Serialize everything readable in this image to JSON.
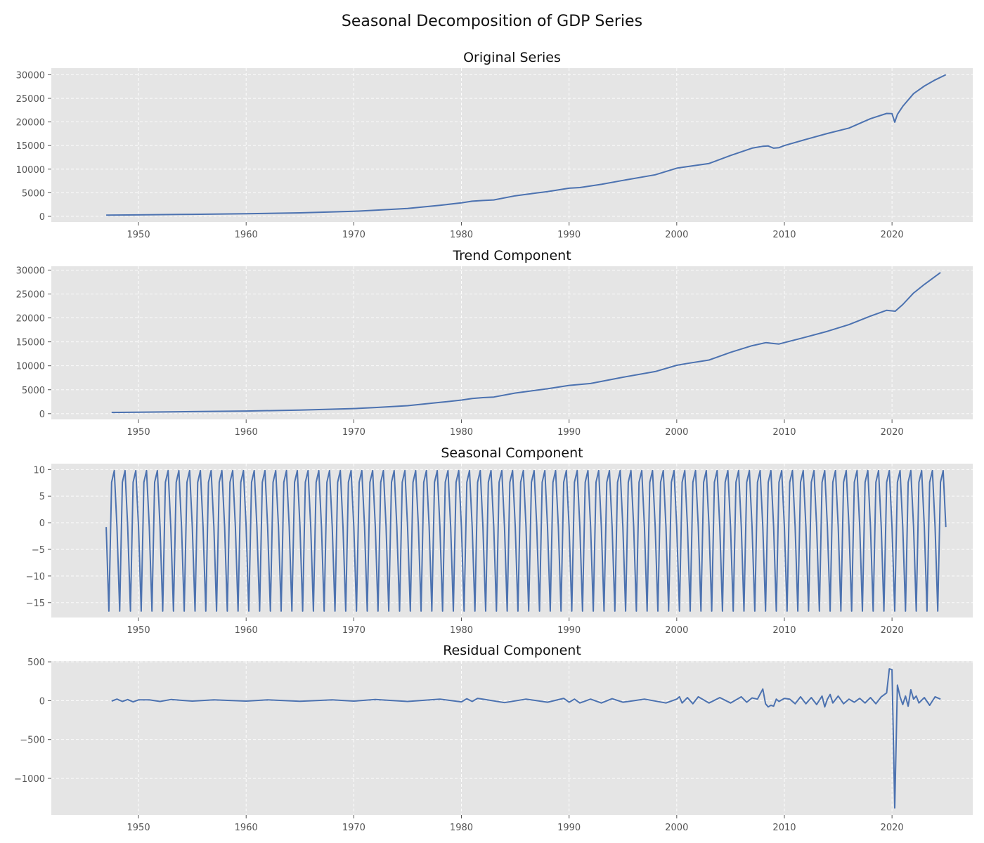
{
  "figure": {
    "title": "Seasonal Decomposition of GDP Series"
  },
  "style": {
    "plot_bg": "#e5e5e5",
    "grid": "#ffffff",
    "line": "#4c72b0",
    "tick_text": "#555555",
    "title_text": "#111111"
  },
  "chart_data": [
    {
      "type": "line",
      "title": "Original Series",
      "xlabel": "",
      "ylabel": "",
      "grid": true,
      "xlim": [
        1941.9,
        2027.5
      ],
      "ylim": [
        -1200,
        31400
      ],
      "xticks": [
        1950,
        1960,
        1970,
        1980,
        1990,
        2000,
        2010,
        2020
      ],
      "yticks": [
        0,
        5000,
        10000,
        15000,
        20000,
        25000,
        30000
      ],
      "series": [
        {
          "x": [
            1947.0,
            1950.0,
            1955.0,
            1960.0,
            1965.0,
            1970.0,
            1972.0,
            1975.0,
            1978.0,
            1980.0,
            1981.0,
            1982.0,
            1983.0,
            1985.0,
            1988.0,
            1990.0,
            1991.0,
            1993.0,
            1995.0,
            1998.0,
            2000.0,
            2001.0,
            2003.0,
            2005.0,
            2007.0,
            2008.0,
            2008.5,
            2009.0,
            2009.5,
            2010.0,
            2012.0,
            2014.0,
            2016.0,
            2018.0,
            2019.5,
            2020.0,
            2020.25,
            2020.5,
            2021.0,
            2022.0,
            2023.0,
            2024.0,
            2025.0
          ],
          "values": [
            250,
            300,
            430,
            540,
            740,
            1070,
            1280,
            1660,
            2350,
            2850,
            3210,
            3360,
            3480,
            4350,
            5250,
            5960,
            6100,
            6780,
            7610,
            8800,
            10200,
            10550,
            11200,
            12900,
            14450,
            14850,
            14900,
            14450,
            14550,
            15000,
            16300,
            17550,
            18700,
            20700,
            21800,
            21750,
            19950,
            21600,
            23300,
            26000,
            27600,
            28900,
            30000
          ]
        }
      ]
    },
    {
      "type": "line",
      "title": "Trend Component",
      "xlabel": "",
      "ylabel": "",
      "grid": true,
      "xlim": [
        1941.9,
        2027.5
      ],
      "ylim": [
        -1200,
        30800
      ],
      "xticks": [
        1950,
        1960,
        1970,
        1980,
        1990,
        2000,
        2010,
        2020
      ],
      "yticks": [
        0,
        5000,
        10000,
        15000,
        20000,
        25000,
        30000
      ],
      "series": [
        {
          "x": [
            1947.5,
            1950.0,
            1955.0,
            1960.0,
            1965.0,
            1970.0,
            1972.0,
            1975.0,
            1978.0,
            1980.0,
            1981.0,
            1982.0,
            1983.0,
            1985.0,
            1988.0,
            1990.0,
            1992.0,
            1995.0,
            1998.0,
            2000.0,
            2001.0,
            2003.0,
            2005.0,
            2007.0,
            2008.3,
            2009.0,
            2009.5,
            2010.0,
            2012.0,
            2014.0,
            2016.0,
            2018.0,
            2019.5,
            2020.3,
            2021.0,
            2022.0,
            2023.0,
            2024.5
          ],
          "values": [
            260,
            300,
            430,
            540,
            740,
            1060,
            1280,
            1660,
            2350,
            2830,
            3180,
            3350,
            3470,
            4300,
            5200,
            5900,
            6300,
            7600,
            8800,
            10100,
            10500,
            11200,
            12800,
            14200,
            14850,
            14650,
            14550,
            14850,
            16000,
            17200,
            18600,
            20400,
            21600,
            21400,
            22800,
            25200,
            27000,
            29500
          ]
        }
      ]
    },
    {
      "type": "line",
      "title": "Seasonal Component",
      "xlabel": "",
      "ylabel": "",
      "grid": true,
      "xlim": [
        1941.9,
        2027.5
      ],
      "ylim": [
        -17.8,
        11.1
      ],
      "xticks": [
        1950,
        1960,
        1970,
        1980,
        1990,
        2000,
        2010,
        2020
      ],
      "yticks": [
        -15,
        -10,
        -5,
        0,
        5,
        10
      ],
      "series": [
        {
          "x_start": 1947.0,
          "x_end": 2025.0,
          "step": 0.25,
          "pattern": [
            -0.8,
            -16.6,
            7.6,
            9.8
          ]
        }
      ]
    },
    {
      "type": "line",
      "title": "Residual Component",
      "xlabel": "",
      "ylabel": "",
      "grid": true,
      "xlim": [
        1941.9,
        2027.5
      ],
      "ylim": [
        -1470,
        510
      ],
      "xticks": [
        1950,
        1960,
        1970,
        1980,
        1990,
        2000,
        2010,
        2020
      ],
      "yticks": [
        -1000,
        -500,
        0,
        500
      ],
      "series": [
        {
          "x": [
            1947.5,
            1948.0,
            1948.5,
            1949.0,
            1949.5,
            1950.0,
            1951.0,
            1952.0,
            1953.0,
            1955.0,
            1957.0,
            1960.0,
            1962.0,
            1965.0,
            1968.0,
            1970.0,
            1972.0,
            1975.0,
            1978.0,
            1980.0,
            1980.5,
            1981.0,
            1981.5,
            1982.0,
            1984.0,
            1986.0,
            1988.0,
            1989.5,
            1990.0,
            1990.5,
            1991.0,
            1992.0,
            1993.0,
            1994.0,
            1995.0,
            1997.0,
            1999.0,
            2000.0,
            2000.25,
            2000.5,
            2001.0,
            2001.5,
            2002.0,
            2003.0,
            2004.0,
            2005.0,
            2006.0,
            2006.5,
            2007.0,
            2007.5,
            2008.0,
            2008.25,
            2008.5,
            2008.75,
            2009.0,
            2009.25,
            2009.5,
            2010.0,
            2010.5,
            2011.0,
            2011.5,
            2012.0,
            2012.5,
            2013.0,
            2013.5,
            2013.75,
            2014.0,
            2014.25,
            2014.5,
            2015.0,
            2015.5,
            2016.0,
            2016.5,
            2017.0,
            2017.5,
            2018.0,
            2018.5,
            2019.0,
            2019.5,
            2019.75,
            2020.0,
            2020.25,
            2020.5,
            2020.75,
            2021.0,
            2021.25,
            2021.5,
            2021.75,
            2022.0,
            2022.25,
            2022.5,
            2023.0,
            2023.5,
            2024.0,
            2024.5
          ],
          "values": [
            -5,
            20,
            -10,
            15,
            -15,
            10,
            10,
            -10,
            15,
            -5,
            10,
            -5,
            10,
            -8,
            10,
            -5,
            15,
            -10,
            20,
            -15,
            25,
            -10,
            30,
            20,
            -25,
            20,
            -20,
            30,
            -20,
            20,
            -30,
            20,
            -30,
            25,
            -20,
            20,
            -30,
            20,
            50,
            -30,
            40,
            -40,
            50,
            -30,
            40,
            -30,
            50,
            -20,
            35,
            20,
            150,
            -40,
            -80,
            -60,
            -70,
            20,
            -10,
            30,
            20,
            -40,
            50,
            -40,
            40,
            -50,
            60,
            -80,
            20,
            80,
            -30,
            60,
            -40,
            20,
            -20,
            30,
            -30,
            40,
            -40,
            50,
            100,
            410,
            400,
            -1380,
            200,
            50,
            -50,
            60,
            -70,
            140,
            20,
            60,
            -30,
            40,
            -60,
            50,
            20
          ]
        }
      ]
    }
  ]
}
